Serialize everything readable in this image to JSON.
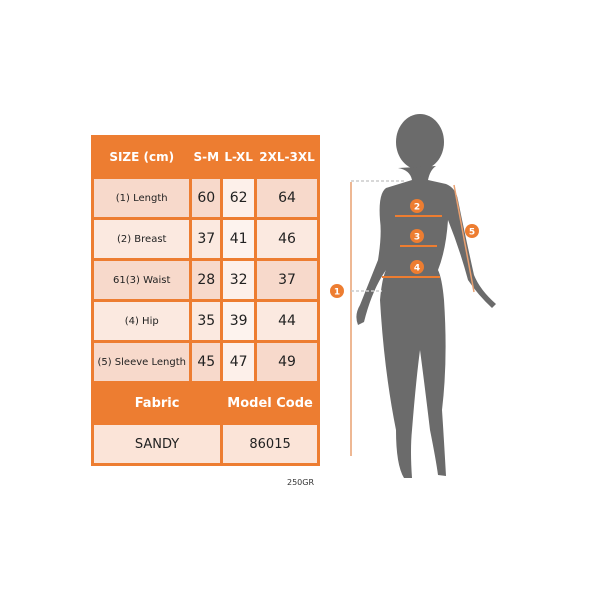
{
  "table": {
    "headers": [
      "SIZE (cm)",
      "S-M",
      "L-XL",
      "2XL-3XL"
    ],
    "rows": [
      {
        "label": "(1) Length",
        "values": [
          "60",
          "62",
          "64"
        ]
      },
      {
        "label": "(2) Breast",
        "values": [
          "37",
          "41",
          "46"
        ]
      },
      {
        "label": "61(3) Waist",
        "values": [
          "28",
          "32",
          "37"
        ]
      },
      {
        "label": "(4) Hip",
        "values": [
          "35",
          "39",
          "44"
        ]
      },
      {
        "label": "(5) Sleeve Length",
        "values": [
          "45",
          "47",
          "49"
        ]
      }
    ],
    "fabric_label": "Fabric",
    "model_code_label": "Model Code",
    "fabric": "SANDY",
    "model_code": "86015"
  },
  "weight": "250GR",
  "figure": {
    "markers": [
      "1",
      "2",
      "3",
      "4",
      "5"
    ],
    "accent": "#ed7d31",
    "silhouette": "#6b6b6b"
  }
}
